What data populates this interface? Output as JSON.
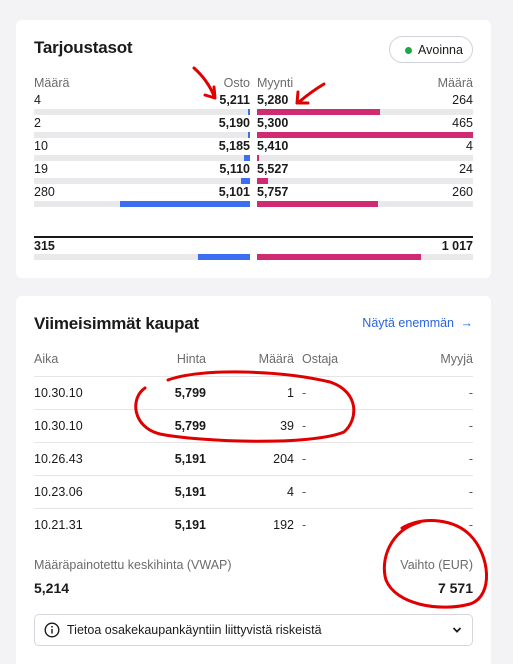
{
  "order_book": {
    "title": "Tarjoustasot",
    "status": "Avoinna",
    "headers": {
      "qty_buy": "Määrä",
      "buy": "Osto",
      "sell": "Myynti",
      "qty_sell": "Määrä"
    },
    "rows": [
      {
        "qty_buy": "4",
        "buy": "5,211",
        "sell": "5,280",
        "qty_sell": "264",
        "buy_fill": 0.008,
        "sell_fill": 0.57
      },
      {
        "qty_buy": "2",
        "buy": "5,190",
        "sell": "5,300",
        "qty_sell": "465",
        "buy_fill": 0.004,
        "sell_fill": 1.0
      },
      {
        "qty_buy": "10",
        "buy": "5,185",
        "sell": "5,410",
        "qty_sell": "4",
        "buy_fill": 0.03,
        "sell_fill": 0.01
      },
      {
        "qty_buy": "19",
        "buy": "5,110",
        "sell": "5,527",
        "qty_sell": "24",
        "buy_fill": 0.04,
        "sell_fill": 0.05
      },
      {
        "qty_buy": "280",
        "buy": "5,101",
        "sell": "5,757",
        "qty_sell": "260",
        "buy_fill": 0.6,
        "sell_fill": 0.56
      }
    ],
    "totals": {
      "buy": "315",
      "sell": "1 017",
      "buy_fill": 0.24,
      "sell_fill": 0.76
    }
  },
  "trades": {
    "title": "Viimeisimmät kaupat",
    "more_label": "Näytä enemmän",
    "headers": {
      "time": "Aika",
      "price": "Hinta",
      "qty": "Määrä",
      "buyer": "Ostaja",
      "seller": "Myyjä"
    },
    "rows": [
      {
        "time": "10.30.10",
        "price": "5,799",
        "qty": "1",
        "buyer": "-",
        "seller": "-"
      },
      {
        "time": "10.30.10",
        "price": "5,799",
        "qty": "39",
        "buyer": "-",
        "seller": "-"
      },
      {
        "time": "10.26.43",
        "price": "5,191",
        "qty": "204",
        "buyer": "-",
        "seller": "-"
      },
      {
        "time": "10.23.06",
        "price": "5,191",
        "qty": "4",
        "buyer": "-",
        "seller": "-"
      },
      {
        "time": "10.21.31",
        "price": "5,191",
        "qty": "192",
        "buyer": "-",
        "seller": "-"
      }
    ],
    "vwap_label": "Määräpainotettu keskihinta (VWAP)",
    "vwap_value": "5,214",
    "turnover_label": "Vaihto (EUR)",
    "turnover_value": "7 571",
    "info_label": "Tietoa osakekaupankäyntiin liittyvistä riskeistä"
  },
  "colors": {
    "buy": "#3b6ef0",
    "sell": "#d02a73",
    "status": "#1fa64a",
    "annotation": "#e00000",
    "link": "#2a64e0"
  },
  "icons": {
    "status": "green-dot",
    "more": "arrow-right-icon",
    "info": "info-circle-icon",
    "expand": "chevron-down-icon"
  }
}
